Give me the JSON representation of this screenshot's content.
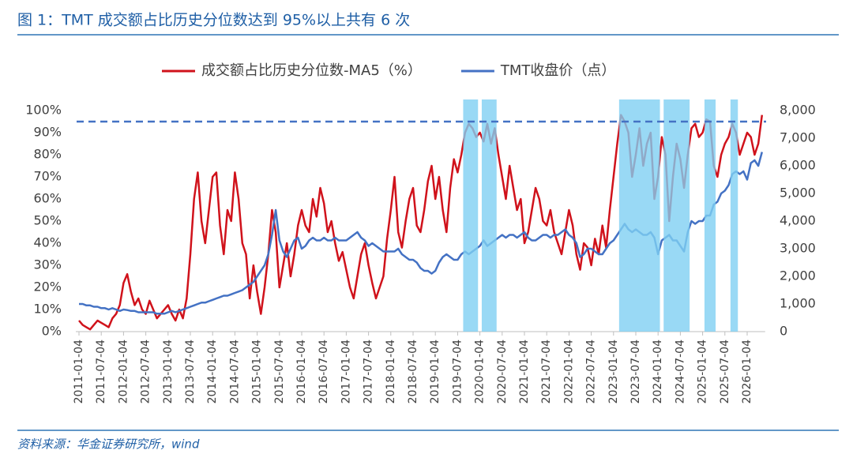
{
  "chart_data": {
    "type": "line",
    "title": "图 1：TMT 成交额占比历史分位数达到 95%以上共有 6 次",
    "source": "资料来源：华金证券研究所，wind",
    "legend_position": "top",
    "categories": [
      "2011-01-04",
      null,
      null,
      null,
      null,
      null,
      "2011-07-04",
      null,
      null,
      null,
      null,
      null,
      "2012-01-04",
      null,
      null,
      null,
      null,
      null,
      "2012-07-04",
      null,
      null,
      null,
      null,
      null,
      "2013-01-04",
      null,
      null,
      null,
      null,
      null,
      "2013-07-04",
      null,
      null,
      null,
      null,
      null,
      "2014-01-04",
      null,
      null,
      null,
      null,
      null,
      "2014-07-04",
      null,
      null,
      null,
      null,
      null,
      "2015-01-04",
      null,
      null,
      null,
      null,
      null,
      "2015-07-04",
      null,
      null,
      null,
      null,
      null,
      "2016-01-04",
      null,
      null,
      null,
      null,
      null,
      "2016-07-04",
      null,
      null,
      null,
      null,
      null,
      "2017-01-04",
      null,
      null,
      null,
      null,
      null,
      "2017-07-04",
      null,
      null,
      null,
      null,
      null,
      "2018-01-04",
      null,
      null,
      null,
      null,
      null,
      "2018-07-04",
      null,
      null,
      null,
      null,
      null,
      "2019-01-04",
      null,
      null,
      null,
      null,
      null,
      "2019-07-04",
      null,
      null,
      null,
      null,
      null,
      "2020-01-04",
      null,
      null,
      null,
      null,
      null,
      "2020-07-04",
      null,
      null,
      null,
      null,
      null,
      "2021-01-04",
      null,
      null,
      null,
      null,
      null,
      "2021-07-04",
      null,
      null,
      null,
      null,
      null,
      "2022-01-04",
      null,
      null,
      null,
      null,
      null,
      "2022-07-04",
      null,
      null,
      null,
      null,
      null,
      "2023-01-04",
      null,
      null,
      null,
      null,
      null,
      "2023-07-04",
      null,
      null,
      null,
      null,
      null,
      "2024-01-04",
      null,
      null,
      null,
      null,
      null,
      "2024-07-04",
      null,
      null,
      null,
      null,
      null,
      "2025-01-04",
      null,
      null,
      null,
      null,
      null,
      "2025-07-04",
      null,
      null,
      null,
      null,
      null,
      "2026-01-04",
      null,
      null,
      null,
      null
    ],
    "series": [
      {
        "name": "成交额占比历史分位数-MA5（%）",
        "color": "#d0121b",
        "axis": "y",
        "values": [
          5,
          3,
          2,
          1,
          3,
          5,
          4,
          3,
          2,
          6,
          8,
          12,
          22,
          26,
          18,
          12,
          15,
          10,
          8,
          14,
          10,
          6,
          8,
          10,
          12,
          8,
          5,
          10,
          6,
          15,
          35,
          60,
          72,
          50,
          40,
          55,
          70,
          72,
          48,
          35,
          55,
          50,
          72,
          60,
          40,
          35,
          15,
          30,
          18,
          8,
          20,
          35,
          55,
          45,
          20,
          30,
          40,
          25,
          35,
          48,
          55,
          48,
          45,
          60,
          52,
          65,
          58,
          45,
          50,
          40,
          32,
          36,
          28,
          20,
          15,
          25,
          35,
          40,
          30,
          22,
          15,
          20,
          25,
          42,
          55,
          70,
          45,
          38,
          50,
          60,
          65,
          48,
          45,
          55,
          68,
          75,
          60,
          70,
          55,
          45,
          65,
          78,
          72,
          80,
          90,
          94,
          92,
          88,
          90,
          86,
          94,
          85,
          92,
          80,
          70,
          60,
          75,
          65,
          55,
          60,
          40,
          45,
          55,
          65,
          60,
          50,
          48,
          55,
          45,
          40,
          35,
          45,
          55,
          48,
          35,
          28,
          40,
          38,
          30,
          42,
          35,
          48,
          38,
          55,
          70,
          85,
          98,
          95,
          90,
          70,
          80,
          92,
          75,
          85,
          90,
          60,
          70,
          88,
          80,
          50,
          70,
          85,
          78,
          65,
          80,
          92,
          94,
          88,
          90,
          96,
          95,
          75,
          70,
          80,
          85,
          88,
          94,
          90,
          80,
          85,
          90,
          88,
          80,
          85,
          98
        ]
      },
      {
        "name": "TMT收盘价（点）",
        "color": "#4472c4",
        "axis": "y2",
        "values": [
          1000,
          1000,
          950,
          950,
          900,
          900,
          850,
          850,
          800,
          850,
          800,
          750,
          800,
          780,
          750,
          750,
          700,
          700,
          700,
          700,
          700,
          650,
          650,
          650,
          700,
          750,
          700,
          750,
          800,
          850,
          900,
          950,
          1000,
          1050,
          1050,
          1100,
          1150,
          1200,
          1250,
          1300,
          1300,
          1350,
          1400,
          1450,
          1500,
          1600,
          1700,
          1800,
          2000,
          2200,
          2400,
          2800,
          3500,
          4400,
          3300,
          2900,
          2700,
          3000,
          3300,
          3400,
          3000,
          3100,
          3300,
          3400,
          3300,
          3300,
          3400,
          3300,
          3300,
          3400,
          3300,
          3300,
          3300,
          3400,
          3500,
          3600,
          3400,
          3300,
          3100,
          3200,
          3100,
          3000,
          2900,
          2900,
          2900,
          2900,
          3000,
          2800,
          2700,
          2600,
          2600,
          2500,
          2300,
          2200,
          2200,
          2100,
          2200,
          2500,
          2700,
          2800,
          2700,
          2600,
          2600,
          2800,
          2900,
          2800,
          2900,
          3000,
          3100,
          3300,
          3100,
          3200,
          3300,
          3400,
          3500,
          3400,
          3500,
          3500,
          3400,
          3500,
          3600,
          3400,
          3300,
          3300,
          3400,
          3500,
          3500,
          3400,
          3500,
          3500,
          3600,
          3700,
          3500,
          3400,
          3200,
          2700,
          2800,
          3000,
          3000,
          2900,
          2800,
          2800,
          3000,
          3200,
          3300,
          3500,
          3700,
          3900,
          3700,
          3600,
          3700,
          3600,
          3500,
          3500,
          3600,
          3400,
          2800,
          3300,
          3400,
          3500,
          3300,
          3300,
          3100,
          2900,
          3600,
          4000,
          3900,
          4000,
          4000,
          4200,
          4200,
          4600,
          4700,
          5000,
          5100,
          5300,
          5700,
          5800,
          5700,
          5800,
          5500,
          6100,
          6200,
          6000,
          6500
        ]
      }
    ],
    "ylim": [
      0,
      100
    ],
    "yticks": [
      {
        "value": 0,
        "label": "0%"
      },
      {
        "value": 10,
        "label": "10%"
      },
      {
        "value": 20,
        "label": "20%"
      },
      {
        "value": 30,
        "label": "30%"
      },
      {
        "value": 40,
        "label": "40%"
      },
      {
        "value": 50,
        "label": "50%"
      },
      {
        "value": 60,
        "label": "60%"
      },
      {
        "value": 70,
        "label": "70%"
      },
      {
        "value": 80,
        "label": "80%"
      },
      {
        "value": 90,
        "label": "90%"
      },
      {
        "value": 100,
        "label": "100%"
      }
    ],
    "y2lim": [
      0,
      8000
    ],
    "y2ticks": [
      0,
      {
        "value": 1000,
        "label": "1,000"
      },
      {
        "value": 2000,
        "label": "2,000"
      },
      {
        "value": 3000,
        "label": "3,000"
      },
      {
        "value": 4000,
        "label": "4,000"
      },
      {
        "value": 5000,
        "label": "5,000"
      },
      {
        "value": 6000,
        "label": "6,000"
      },
      {
        "value": 7000,
        "label": "7,000"
      },
      {
        "value": 8000,
        "label": "8,000"
      }
    ],
    "threshold": 95,
    "threshold_color": "#4472c4",
    "highlight_color": "#7fd0f2",
    "highlight_ranges": [
      [
        104,
        107
      ],
      [
        109,
        112
      ],
      [
        146,
        156
      ],
      [
        158,
        164
      ],
      [
        169,
        171
      ],
      [
        176,
        177
      ]
    ]
  }
}
